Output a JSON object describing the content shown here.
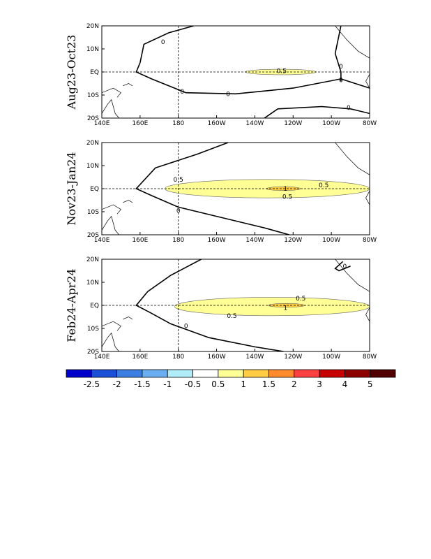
{
  "chart_data": [
    {
      "type": "contour",
      "panel_label": "Aug23-Oct23",
      "x_ticks": [
        "140E",
        "160E",
        "180",
        "160W",
        "140W",
        "120W",
        "100W",
        "80W"
      ],
      "y_ticks": [
        "20S",
        "10S",
        "EQ",
        "10N",
        "20N"
      ],
      "xlim": [
        140,
        280
      ],
      "ylim": [
        -20,
        20
      ],
      "contour_labels": [
        "0",
        "0",
        "0.5",
        "0",
        "0",
        "0",
        "0"
      ],
      "shaded_regions": [
        {
          "level": 0.5,
          "lon_range": [
            215,
            252
          ],
          "lat_range": [
            -1.2,
            1.2
          ]
        }
      ]
    },
    {
      "type": "contour",
      "panel_label": "Nov23-Jan24",
      "x_ticks": [
        "140E",
        "160E",
        "180",
        "160W",
        "140W",
        "120W",
        "100W",
        "80W"
      ],
      "y_ticks": [
        "20S",
        "10S",
        "EQ",
        "10N",
        "20N"
      ],
      "xlim": [
        140,
        280
      ],
      "ylim": [
        -20,
        20
      ],
      "contour_labels": [
        "0.5",
        "0.5",
        "0.5",
        "1",
        "0"
      ],
      "shaded_regions": [
        {
          "level": 0.5,
          "lon_range": [
            173,
            280
          ],
          "lat_range": [
            -4,
            4
          ]
        },
        {
          "level": 1,
          "lon_range": [
            226,
            244
          ],
          "lat_range": [
            -0.8,
            0.8
          ]
        }
      ]
    },
    {
      "type": "contour",
      "panel_label": "Feb24-Apr24",
      "x_ticks": [
        "140E",
        "160E",
        "180",
        "160W",
        "140W",
        "120W",
        "100W",
        "80W"
      ],
      "y_ticks": [
        "20S",
        "10S",
        "EQ",
        "10N",
        "20N"
      ],
      "xlim": [
        140,
        280
      ],
      "ylim": [
        -20,
        20
      ],
      "contour_labels": [
        "0.5",
        "0.5",
        "1",
        "0",
        "0"
      ],
      "shaded_regions": [
        {
          "level": 0.5,
          "lon_range": [
            178,
            280
          ],
          "lat_range": [
            -4.5,
            3.5
          ]
        },
        {
          "level": 1,
          "lon_range": [
            227,
            246
          ],
          "lat_range": [
            -0.8,
            0.8
          ]
        }
      ]
    }
  ],
  "colorbar": {
    "labels": [
      "-2.5",
      "-2",
      "-1.5",
      "-1",
      "-0.5",
      "0.5",
      "1",
      "1.5",
      "2",
      "3",
      "4",
      "5"
    ],
    "colors": [
      "#0000cd",
      "#1b4fd6",
      "#3c7fe0",
      "#6aaef0",
      "#b0ebf8",
      "#ffffff",
      "#ffff96",
      "#ffcc44",
      "#ff8c2c",
      "#ff4040",
      "#c80000",
      "#8c0000",
      "#500000"
    ]
  }
}
